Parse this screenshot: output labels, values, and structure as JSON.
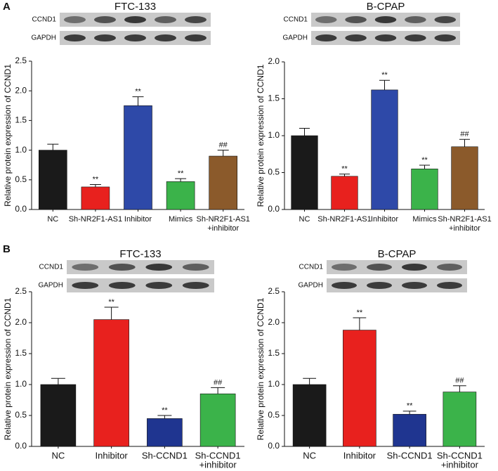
{
  "chart_data": [
    {
      "type": "bar",
      "panel_label": "A",
      "title": "FTC-133",
      "blot_rows": [
        "CCND1",
        "GAPDH"
      ],
      "ylabel": "Relative protein expression of CCND1",
      "categories": [
        [
          "NC"
        ],
        [
          "Sh-NR2F1-AS1"
        ],
        [
          "Inhibitor"
        ],
        [
          "Mimics"
        ],
        [
          "Sh-NR2F1-AS1",
          "+inhibitor"
        ]
      ],
      "values": [
        1.0,
        0.38,
        1.75,
        0.47,
        0.9
      ],
      "errors": [
        0.1,
        0.04,
        0.15,
        0.05,
        0.1
      ],
      "annotations": [
        null,
        "**",
        "**",
        "**",
        "##"
      ],
      "colors": [
        "#1a1a1a",
        "#e8211e",
        "#2e49a8",
        "#3bb34a",
        "#8b5a2b"
      ],
      "ylim": [
        0,
        2.5
      ],
      "yticks": [
        {
          "value": 0,
          "label": "0.0"
        },
        {
          "value": 0.5,
          "label": "0.5"
        },
        {
          "value": 1,
          "label": "1.0"
        },
        {
          "value": 1.5,
          "label": "1.5"
        },
        {
          "value": 2,
          "label": "2.0"
        },
        {
          "value": 2.5,
          "label": "2.5"
        }
      ]
    },
    {
      "type": "bar",
      "title": "B-CPAP",
      "blot_rows": [
        "CCND1",
        "GAPDH"
      ],
      "ylabel": "Relative protein expression of CCND1",
      "categories": [
        [
          "NC"
        ],
        [
          "Sh-NR2F1-AS1"
        ],
        [
          "Inhibitor"
        ],
        [
          "Mimics"
        ],
        [
          "Sh-NR2F1-AS1",
          "+inhibitor"
        ]
      ],
      "values": [
        1.0,
        0.45,
        1.62,
        0.55,
        0.85
      ],
      "errors": [
        0.1,
        0.03,
        0.13,
        0.05,
        0.1
      ],
      "annotations": [
        null,
        "**",
        "**",
        "**",
        "##"
      ],
      "colors": [
        "#1a1a1a",
        "#e8211e",
        "#2e49a8",
        "#3bb34a",
        "#8b5a2b"
      ],
      "ylim": [
        0,
        2
      ],
      "yticks": [
        {
          "value": 0,
          "label": "0.0"
        },
        {
          "value": 0.5,
          "label": "0.5"
        },
        {
          "value": 1,
          "label": "1.0"
        },
        {
          "value": 1.5,
          "label": "1.5"
        },
        {
          "value": 2,
          "label": "2.0"
        }
      ]
    },
    {
      "type": "bar",
      "panel_label": "B",
      "title": "FTC-133",
      "blot_rows": [
        "CCND1",
        "GAPDH"
      ],
      "ylabel": "Relative protein expression of CCND1",
      "categories": [
        [
          "NC"
        ],
        [
          "Inhibitor"
        ],
        [
          "Sh-CCND1"
        ],
        [
          "Sh-CCND1",
          "+inhibitor"
        ]
      ],
      "values": [
        1.0,
        2.05,
        0.45,
        0.85
      ],
      "errors": [
        0.1,
        0.2,
        0.05,
        0.1
      ],
      "annotations": [
        null,
        "**",
        "**",
        "##"
      ],
      "colors": [
        "#1a1a1a",
        "#e8211e",
        "#1f3590",
        "#3bb34a"
      ],
      "ylim": [
        0,
        2.5
      ],
      "yticks": [
        {
          "value": 0,
          "label": "0.0"
        },
        {
          "value": 0.5,
          "label": "0.5"
        },
        {
          "value": 1,
          "label": "1.0"
        },
        {
          "value": 1.5,
          "label": "1.5"
        },
        {
          "value": 2,
          "label": "2.0"
        },
        {
          "value": 2.5,
          "label": "2.5"
        }
      ]
    },
    {
      "type": "bar",
      "title": "B-CPAP",
      "blot_rows": [
        "CCND1",
        "GAPDH"
      ],
      "ylabel": "Relative protein expression of CCND1",
      "categories": [
        [
          "NC"
        ],
        [
          "Inhibitor"
        ],
        [
          "Sh-CCND1"
        ],
        [
          "Sh-CCND1",
          "+inhibitor"
        ]
      ],
      "values": [
        1.0,
        1.88,
        0.52,
        0.88
      ],
      "errors": [
        0.1,
        0.2,
        0.05,
        0.1
      ],
      "annotations": [
        null,
        "**",
        "**",
        "##"
      ],
      "colors": [
        "#1a1a1a",
        "#e8211e",
        "#1f3590",
        "#3bb34a"
      ],
      "ylim": [
        0,
        2.5
      ],
      "yticks": [
        {
          "value": 0,
          "label": "0.0"
        },
        {
          "value": 0.5,
          "label": "0.5"
        },
        {
          "value": 1,
          "label": "1.0"
        },
        {
          "value": 1.5,
          "label": "1.5"
        },
        {
          "value": 2,
          "label": "2.0"
        },
        {
          "value": 2.5,
          "label": "2.5"
        }
      ]
    }
  ]
}
